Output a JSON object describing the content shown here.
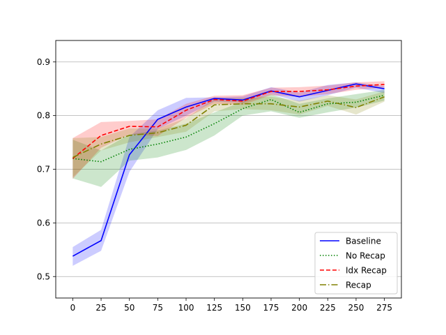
{
  "chart_data": {
    "type": "line",
    "title": "",
    "xlabel": "",
    "ylabel": "",
    "xlim": [
      -15,
      290
    ],
    "ylim": [
      0.46,
      0.94
    ],
    "xticks": [
      0,
      25,
      50,
      75,
      100,
      125,
      150,
      175,
      200,
      225,
      250,
      275
    ],
    "yticks": [
      0.5,
      0.6,
      0.7,
      0.8,
      0.9
    ],
    "xtick_labels": [
      "0",
      "25",
      "50",
      "75",
      "100",
      "125",
      "150",
      "175",
      "200",
      "225",
      "250",
      "275"
    ],
    "ytick_labels": [
      "0.5",
      "0.6",
      "0.7",
      "0.8",
      "0.9"
    ],
    "grid": "horizontal",
    "legend_position": "lower-right",
    "x": [
      0,
      25,
      50,
      75,
      100,
      125,
      150,
      175,
      200,
      225,
      250,
      275
    ],
    "series": [
      {
        "name": "Baseline",
        "color": "#0000ff",
        "dash": "solid",
        "values": [
          0.538,
          0.567,
          0.727,
          0.793,
          0.816,
          0.832,
          0.829,
          0.846,
          0.835,
          0.847,
          0.859,
          0.85
        ],
        "lower": [
          0.52,
          0.548,
          0.695,
          0.775,
          0.8,
          0.826,
          0.824,
          0.84,
          0.826,
          0.838,
          0.852,
          0.842
        ],
        "upper": [
          0.555,
          0.587,
          0.76,
          0.81,
          0.833,
          0.834,
          0.836,
          0.853,
          0.843,
          0.857,
          0.862,
          0.855
        ]
      },
      {
        "name": "No Recap",
        "color": "#008000",
        "dash": "dotted",
        "values": [
          0.72,
          0.714,
          0.737,
          0.747,
          0.76,
          0.785,
          0.813,
          0.83,
          0.806,
          0.822,
          0.825,
          0.838
        ],
        "lower": [
          0.683,
          0.667,
          0.716,
          0.722,
          0.736,
          0.763,
          0.8,
          0.808,
          0.796,
          0.806,
          0.815,
          0.828
        ],
        "upper": [
          0.755,
          0.735,
          0.765,
          0.772,
          0.785,
          0.806,
          0.826,
          0.84,
          0.822,
          0.832,
          0.84,
          0.848
        ]
      },
      {
        "name": "Idx Recap",
        "color": "#ff0000",
        "dash": "dashed",
        "values": [
          0.72,
          0.763,
          0.78,
          0.779,
          0.81,
          0.83,
          0.827,
          0.845,
          0.845,
          0.848,
          0.855,
          0.858
        ],
        "lower": [
          0.682,
          0.74,
          0.765,
          0.762,
          0.796,
          0.822,
          0.82,
          0.838,
          0.835,
          0.84,
          0.848,
          0.852
        ],
        "upper": [
          0.758,
          0.788,
          0.79,
          0.793,
          0.822,
          0.837,
          0.838,
          0.852,
          0.853,
          0.856,
          0.862,
          0.864
        ]
      },
      {
        "name": "Recap",
        "color": "#808000",
        "dash": "dashdot",
        "values": [
          0.722,
          0.747,
          0.763,
          0.768,
          0.782,
          0.82,
          0.822,
          0.822,
          0.816,
          0.827,
          0.815,
          0.835
        ],
        "lower": [
          0.685,
          0.735,
          0.75,
          0.76,
          0.77,
          0.808,
          0.812,
          0.81,
          0.802,
          0.818,
          0.802,
          0.826
        ],
        "upper": [
          0.758,
          0.76,
          0.776,
          0.776,
          0.795,
          0.832,
          0.833,
          0.835,
          0.828,
          0.838,
          0.83,
          0.845
        ]
      }
    ]
  }
}
